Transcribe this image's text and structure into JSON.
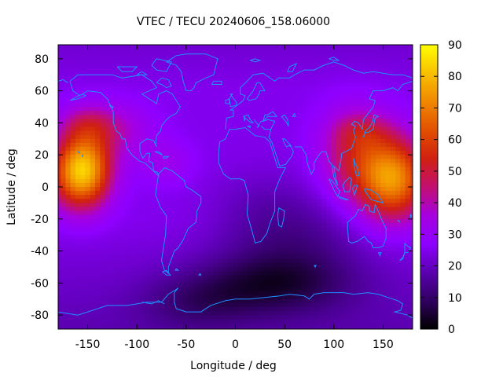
{
  "chart_data": {
    "type": "heatmap",
    "title": "VTEC / TECU 20240606_158.06000",
    "xlabel": "Longitude / deg",
    "ylabel": "Latitude / deg",
    "xlim": [
      -180,
      180
    ],
    "ylim": [
      -88.75,
      88.75
    ],
    "xticks": [
      -150,
      -100,
      -50,
      0,
      50,
      100,
      150
    ],
    "yticks": [
      -80,
      -60,
      -40,
      -20,
      0,
      20,
      40,
      60,
      80
    ],
    "colorbar": {
      "range": [
        0,
        90
      ],
      "ticks": [
        0,
        10,
        20,
        30,
        40,
        50,
        60,
        70,
        80,
        90
      ],
      "palette": [
        "#000000",
        "#300060",
        "#5a00b0",
        "#8e00ff",
        "#a600e0",
        "#c21070",
        "#d02010",
        "#e25000",
        "#f08800",
        "#f8c000",
        "#ffff00"
      ]
    },
    "grid_resolution_deg": {
      "lon": 5,
      "lat": 2.5
    },
    "coastline_color": "#1e90ff",
    "peaks": [
      {
        "lon": -160,
        "lat": 10,
        "vtec": 80
      },
      {
        "lon": 160,
        "lat": 0,
        "vtec": 70
      }
    ],
    "field_summary": {
      "background_midlatitude": 25,
      "polar_north": 20,
      "southern_trough": {
        "lon": 40,
        "lat": -60,
        "vtec": 5
      }
    }
  }
}
